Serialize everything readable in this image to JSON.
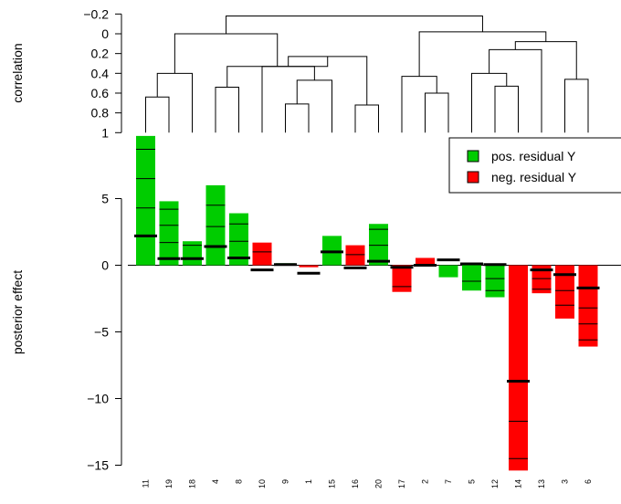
{
  "chart_data": {
    "type": "bar",
    "dendrogram": {
      "ylabel": "correlation",
      "yticks": [
        "−0.2",
        "0",
        "0.2",
        "0.4",
        "0.6",
        "0.8",
        "1"
      ],
      "tick_values": [
        -0.2,
        0,
        0.2,
        0.4,
        0.6,
        0.8,
        1
      ],
      "ylim": [
        1,
        -0.2
      ],
      "leaf_order": [
        "11",
        "19",
        "18",
        "4",
        "8",
        "10",
        "9",
        "1",
        "15",
        "16",
        "20",
        "17",
        "2",
        "7",
        "5",
        "12",
        "14",
        "13",
        "3",
        "6"
      ],
      "merges": [
        {
          "a": "L0",
          "b": "L1",
          "h": 0.64
        },
        {
          "a": "M0",
          "b": "L2",
          "h": 0.4
        },
        {
          "a": "L3",
          "b": "L4",
          "h": 0.54
        },
        {
          "a": "L6",
          "b": "L7",
          "h": 0.71
        },
        {
          "a": "M3",
          "b": "L8",
          "h": 0.47
        },
        {
          "a": "M4",
          "b": "L5",
          "h": 0.33
        },
        {
          "a": "L9",
          "b": "L10",
          "h": 0.72
        },
        {
          "a": "M5",
          "b": "M6",
          "h": 0.23
        },
        {
          "a": "M2",
          "b": "M7",
          "h": 0.33
        },
        {
          "a": "M1",
          "b": "M8",
          "h": 0.0
        },
        {
          "a": "L12",
          "b": "L13",
          "h": 0.6
        },
        {
          "a": "L11",
          "b": "M10",
          "h": 0.43
        },
        {
          "a": "L15",
          "b": "L16",
          "h": 0.53
        },
        {
          "a": "L14",
          "b": "M12",
          "h": 0.4
        },
        {
          "a": "M13",
          "b": "L17",
          "h": 0.16
        },
        {
          "a": "L18",
          "b": "L19",
          "h": 0.46
        },
        {
          "a": "M14",
          "b": "M15",
          "h": 0.08
        },
        {
          "a": "M11",
          "b": "M16",
          "h": -0.02
        },
        {
          "a": "M9",
          "b": "M17",
          "h": -0.18
        }
      ]
    },
    "effects": {
      "ylabel": "posterior effect",
      "ylim": [
        -15.5,
        9.8
      ],
      "yticks": [
        5,
        0,
        -5,
        -10,
        -15
      ],
      "ytick_labels": [
        "5",
        "0",
        "−5",
        "−10",
        "−15"
      ],
      "categories": [
        "11",
        "19",
        "18",
        "4",
        "8",
        "10",
        "9",
        "1",
        "15",
        "16",
        "20",
        "17",
        "2",
        "7",
        "5",
        "12",
        "14",
        "13",
        "3",
        "6"
      ],
      "values": [
        9.7,
        4.8,
        1.8,
        6.0,
        3.9,
        1.7,
        0.15,
        -0.15,
        2.2,
        1.5,
        3.1,
        -2.0,
        0.55,
        -0.9,
        -1.9,
        -2.4,
        -15.4,
        -2.1,
        -4.0,
        -6.1
      ],
      "median": [
        2.2,
        0.5,
        0.5,
        1.4,
        0.55,
        -0.35,
        0.05,
        -0.6,
        1.0,
        -0.2,
        0.3,
        -0.15,
        0.0,
        0.4,
        0.1,
        0.05,
        -8.7,
        -0.35,
        -0.7,
        -1.7
      ],
      "inner_lines": [
        [
          8.7,
          6.5,
          4.3
        ],
        [
          4.2,
          3.0,
          1.7
        ],
        [
          1.5
        ],
        [
          4.5,
          2.9
        ],
        [
          3.1,
          1.8
        ],
        [
          1.0
        ],
        [],
        [],
        [],
        [
          0.8
        ],
        [
          2.7,
          1.5
        ],
        [
          -1.6
        ],
        [],
        [],
        [
          -1.2
        ],
        [
          -1.9,
          -1.0
        ],
        [
          -14.5,
          -11.7
        ],
        [
          -1.8,
          -1.0
        ],
        [
          -3.0,
          -1.9
        ],
        [
          -5.6,
          -4.4,
          -3.2
        ]
      ],
      "sign": [
        "pos",
        "pos",
        "pos",
        "pos",
        "pos",
        "neg",
        "pos",
        "neg",
        "pos",
        "neg",
        "pos",
        "neg",
        "neg",
        "pos",
        "pos",
        "pos",
        "neg",
        "neg",
        "neg",
        "neg"
      ],
      "colors": {
        "pos": "#00cc00",
        "neg": "#ff0000"
      }
    },
    "legend": {
      "position": "top-right",
      "entries": [
        {
          "label": "pos. residual Y",
          "color": "#00cc00"
        },
        {
          "label": "neg. residual Y",
          "color": "#ff0000"
        }
      ]
    }
  }
}
